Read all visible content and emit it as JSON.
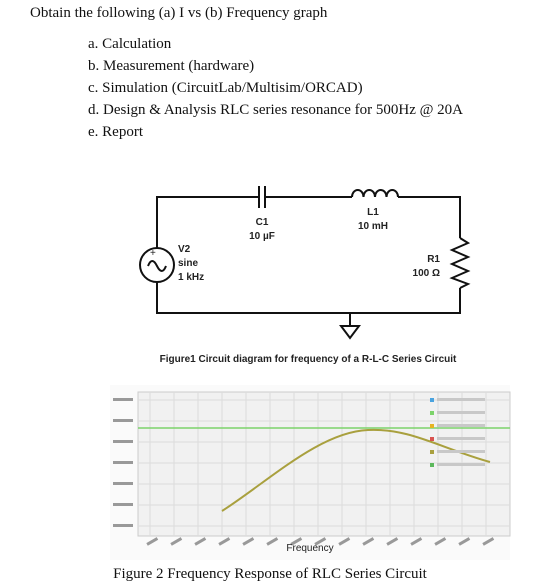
{
  "header": {
    "title": "Obtain the following (a) I vs (b) Frequency graph"
  },
  "list": {
    "items": [
      "a. Calculation",
      "b. Measurement (hardware)",
      "c. Simulation (CircuitLab/Multisim/ORCAD)",
      "d. Design & Analysis RLC series resonance for 500Hz @ 20A",
      "e. Report"
    ]
  },
  "circuit": {
    "components": [
      {
        "name": "C1",
        "value": "10 µF"
      },
      {
        "name": "L1",
        "value": "10 mH"
      },
      {
        "name": "V2",
        "type": "sine",
        "value": "1 kHz"
      },
      {
        "name": "R1",
        "value": "100 Ω"
      }
    ],
    "caption": "Figure1 Circuit diagram for frequency of a R-L-C Series Circuit"
  },
  "figure2": {
    "x_label": "Frequency",
    "caption": "Figure 2 Frequency Response of RLC Series Circuit"
  }
}
